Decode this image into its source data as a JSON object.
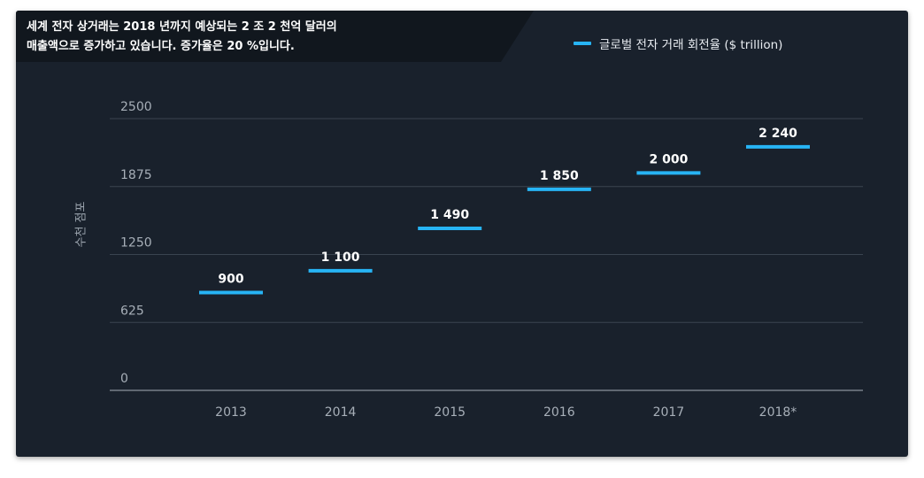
{
  "chart_data": {
    "type": "line",
    "title": "세계 전자 상거래는 2018 년까지 예상되는 2 조 2 천억 달러의 매출액으로 증가하고 있습니다. 증가율은 20 %입니다.",
    "title_lines": [
      "세계 전자 상거래는 2018 년까지 예상되는 2 조 2 천억 달러의",
      "매출액으로 증가하고 있습니다. 증가율은 20 %입니다."
    ],
    "xlabel": "",
    "ylabel": "수천 점포",
    "categories": [
      "2013",
      "2014",
      "2015",
      "2016",
      "2017",
      "2018*"
    ],
    "series": [
      {
        "name": "글로벌 전자 거래 회전율 ($ trillion)",
        "values": [
          900,
          1100,
          1490,
          1850,
          2000,
          2240
        ],
        "labels": [
          "900",
          "1 100",
          "1 490",
          "1 850",
          "2 000",
          "2 240"
        ]
      }
    ],
    "ylim": [
      0,
      2500
    ],
    "yticks": [
      0,
      625,
      1250,
      1875,
      2500
    ],
    "grid": true,
    "legend_position": "top-right",
    "colors": {
      "background": "#19212c",
      "title_band": "#11171e",
      "series": "#27b4f5",
      "grid": "#3a4450",
      "axis": "#8a939d"
    }
  }
}
